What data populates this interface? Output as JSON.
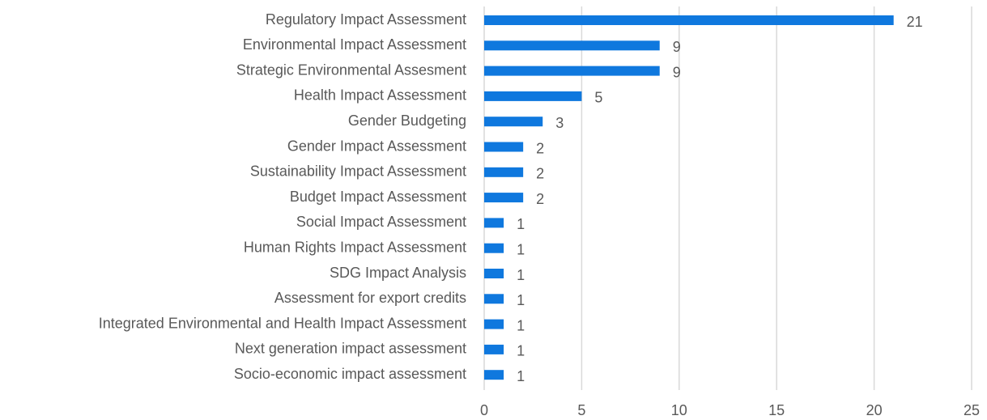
{
  "chart_data": {
    "type": "bar",
    "orientation": "horizontal",
    "categories": [
      "Regulatory Impact Assessment",
      "Environmental Impact Assessment",
      "Strategic Environmental Assesment",
      "Health Impact Assessment",
      "Gender Budgeting",
      "Gender Impact Assessment",
      "Sustainability Impact Assessment",
      "Budget Impact Assessment",
      "Social Impact Assessment",
      "Human Rights Impact Assessment",
      "SDG Impact Analysis",
      "Assessment for export credits",
      "Integrated Environmental and Health Impact Assessment",
      "Next generation impact assessment",
      "Socio-economic impact assessment"
    ],
    "values": [
      21,
      9,
      9,
      5,
      3,
      2,
      2,
      2,
      1,
      1,
      1,
      1,
      1,
      1,
      1
    ],
    "color": "#0f78de",
    "xlim": [
      0,
      25
    ],
    "xticks": [
      0,
      5,
      10,
      15,
      20,
      25
    ],
    "grid": true
  }
}
